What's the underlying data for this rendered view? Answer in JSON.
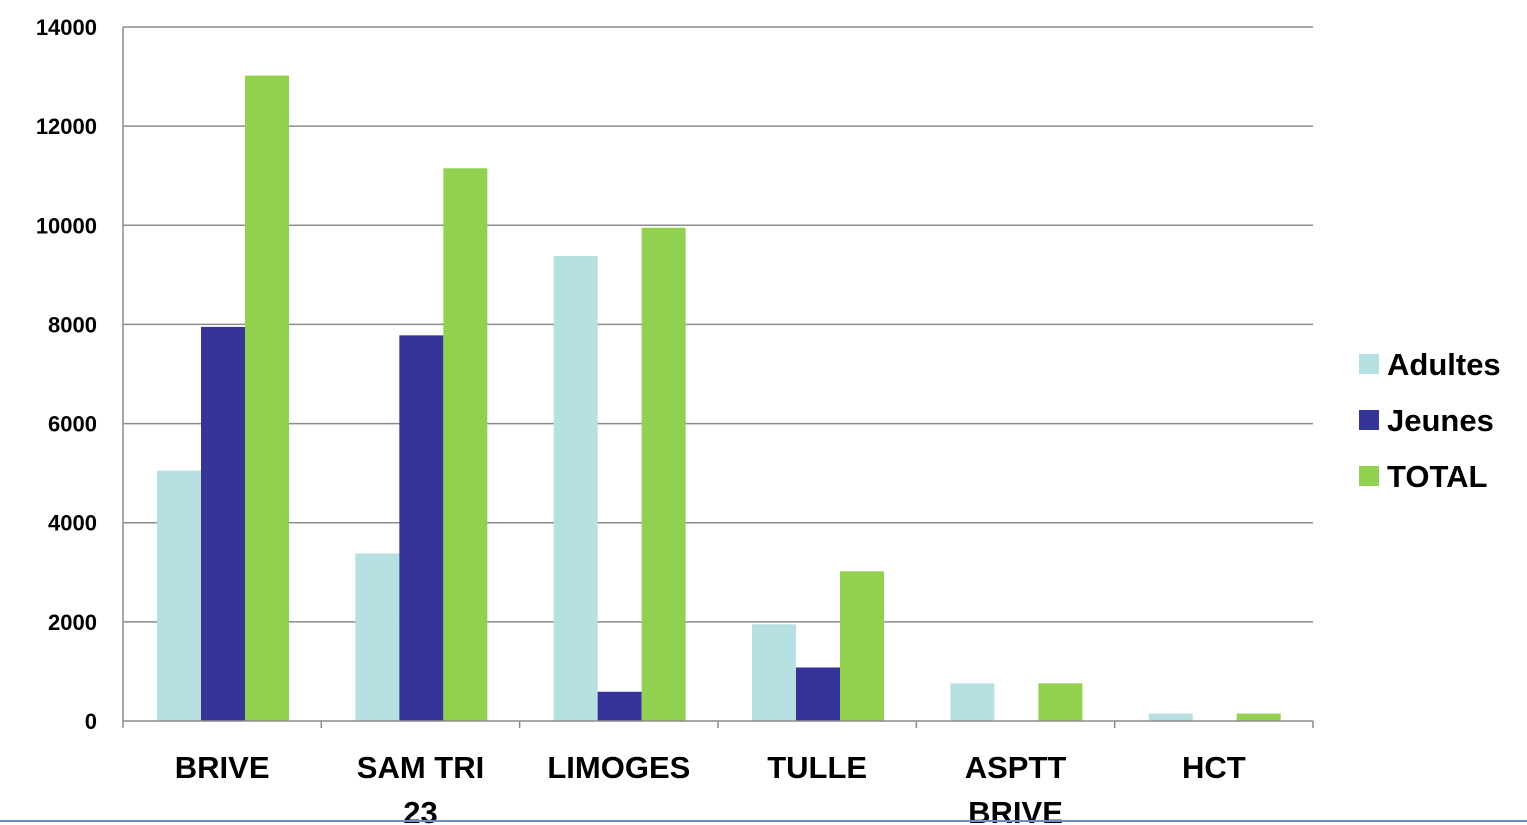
{
  "chart_data": {
    "type": "bar",
    "title": "",
    "xlabel": "",
    "ylabel": "",
    "categories": [
      [
        "BRIVE"
      ],
      [
        "SAM TRI",
        "23"
      ],
      [
        "LIMOGES"
      ],
      [
        "TULLE"
      ],
      [
        "ASPTT",
        "BRIVE"
      ],
      [
        "HCT"
      ]
    ],
    "series": [
      {
        "name": "Adultes",
        "color": "#b7e0e2",
        "values": [
          5050,
          3380,
          9380,
          1950,
          760,
          150
        ]
      },
      {
        "name": "Jeunes",
        "color": "#353497",
        "values": [
          7950,
          7780,
          590,
          1080,
          0,
          0
        ]
      },
      {
        "name": "TOTAL",
        "color": "#92d050",
        "values": [
          13020,
          11150,
          9950,
          3020,
          760,
          150
        ]
      }
    ],
    "ylim": [
      0,
      14000
    ],
    "yticks": [
      "0",
      "2000",
      "4000",
      "6000",
      "8000",
      "10000",
      "12000",
      "14000"
    ],
    "grid": true,
    "legend": "right"
  }
}
